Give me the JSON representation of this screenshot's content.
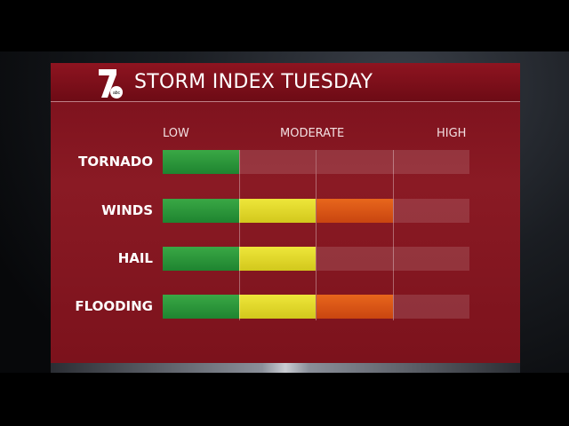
{
  "header": {
    "title": "STORM INDEX TUESDAY",
    "logo_text": "7 abc"
  },
  "chart_data": {
    "type": "bar",
    "title": "STORM INDEX TUESDAY",
    "scale_labels": [
      "LOW",
      "MODERATE",
      "HIGH"
    ],
    "max_level": 4,
    "categories": [
      "TORNADO",
      "WINDS",
      "HAIL",
      "FLOODING"
    ],
    "values": [
      1,
      3,
      2,
      3
    ],
    "segment_colors": [
      "#2c9a3c",
      "#e3dc2a",
      "#e0561a",
      "#c43a2a"
    ],
    "empty_color": "#a0404a"
  }
}
